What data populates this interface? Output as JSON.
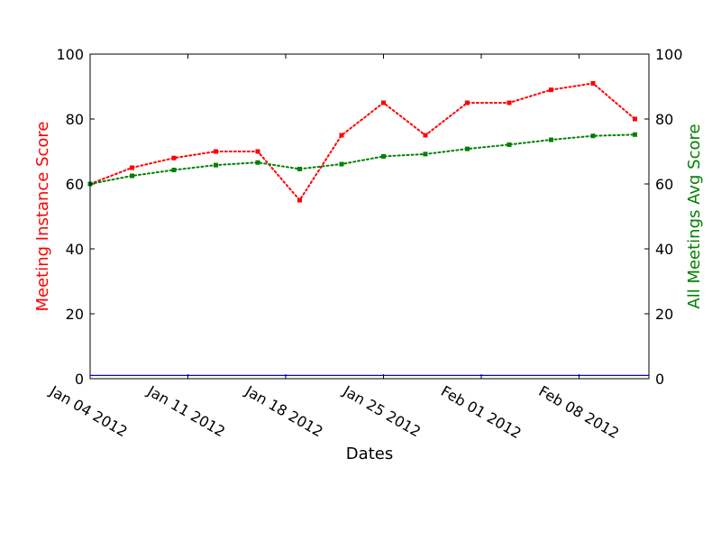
{
  "chart_data": {
    "type": "line",
    "x": [
      "2012-01-04",
      "2012-01-07",
      "2012-01-10",
      "2012-01-13",
      "2012-01-16",
      "2012-01-19",
      "2012-01-22",
      "2012-01-25",
      "2012-01-28",
      "2012-01-31",
      "2012-02-03",
      "2012-02-06",
      "2012-02-09",
      "2012-02-12"
    ],
    "xlim": [
      "2012-01-04",
      "2012-02-13"
    ],
    "xticks": [
      "Jan 04 2012",
      "Jan 11 2012",
      "Jan 18 2012",
      "Jan 25 2012",
      "Feb 01 2012",
      "Feb 08 2012"
    ],
    "xtick_dates": [
      "2012-01-04",
      "2012-01-11",
      "2012-01-18",
      "2012-01-25",
      "2012-02-01",
      "2012-02-08"
    ],
    "xlabel": "Dates",
    "ylabel_left": "Meeting Instance Score",
    "ylabel_right": "All Meetings Avg Score",
    "ylim": [
      0,
      100
    ],
    "yticks": [
      0,
      20,
      40,
      60,
      80,
      100
    ],
    "series": [
      {
        "axis": "left",
        "color": "#ff0000",
        "values": [
          60,
          65,
          68,
          70,
          70,
          55,
          75,
          85,
          75,
          85,
          85,
          89,
          91,
          80
        ]
      },
      {
        "axis": "right",
        "color": "#008000",
        "values": [
          60,
          62.5,
          64.3,
          65.8,
          66.6,
          64.6,
          66.1,
          68.5,
          69.2,
          70.8,
          72.1,
          73.6,
          74.8,
          75.2
        ]
      }
    ],
    "baseline": {
      "color": "#0000ff",
      "value": 1
    },
    "grid": false
  }
}
